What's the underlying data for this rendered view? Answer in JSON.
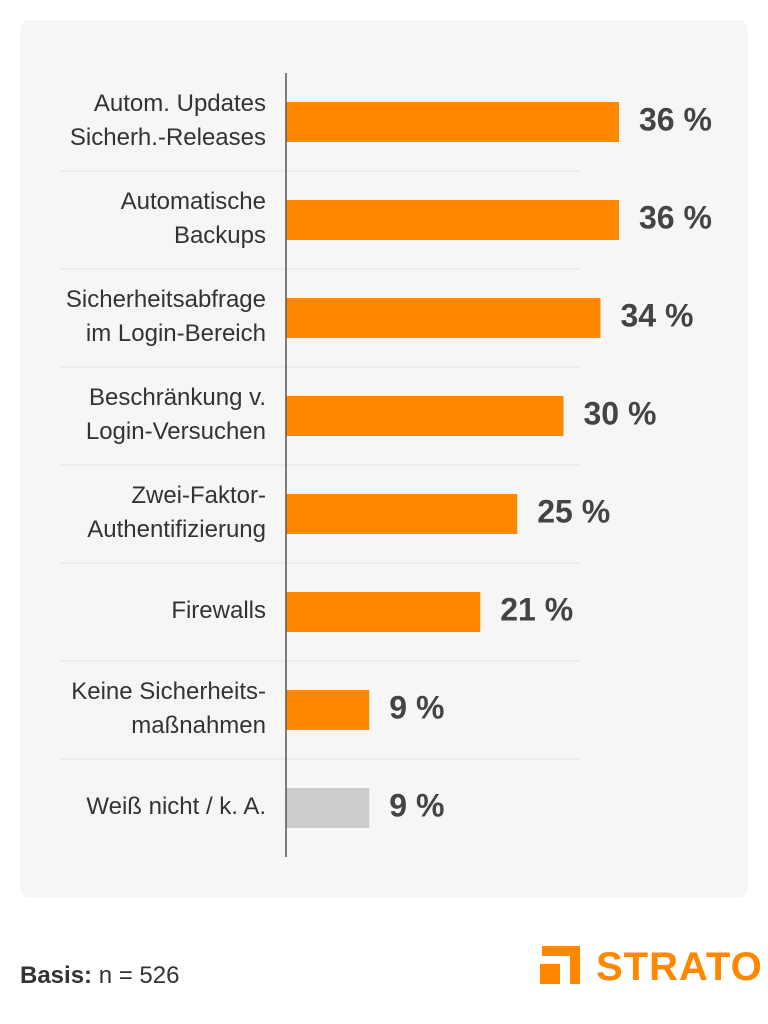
{
  "chart_data": {
    "type": "bar",
    "orientation": "horizontal",
    "categories": [
      [
        "Autom. Updates",
        "Sicherh.-Releases"
      ],
      [
        "Automatische",
        "Backups"
      ],
      [
        "Sicherheitsabfrage",
        "im Login-Bereich"
      ],
      [
        "Beschränkung v.",
        "Login-Versuchen"
      ],
      [
        "Zwei-Faktor-",
        "Authentifizierung"
      ],
      [
        "Firewalls"
      ],
      [
        "Keine Sicherheits-",
        "maßnahmen"
      ],
      [
        "Weiß nicht / k.  A."
      ]
    ],
    "values": [
      36,
      36,
      34,
      30,
      25,
      21,
      9,
      9
    ],
    "value_labels": [
      "36 %",
      "36 %",
      "34 %",
      "30 %",
      "25 %",
      "21 %",
      "9 %",
      "9 %"
    ],
    "bar_colors": [
      "#ff8800",
      "#ff8800",
      "#ff8800",
      "#ff8800",
      "#ff8800",
      "#ff8800",
      "#ff8800",
      "#cccccc"
    ],
    "xlim": [
      0,
      40
    ],
    "grid": "horizontal separators between rows"
  },
  "footer": {
    "basis_label": "Basis:",
    "basis_value": " n = 526"
  },
  "logo": {
    "text": "STRATO",
    "color": "#ff8800"
  }
}
